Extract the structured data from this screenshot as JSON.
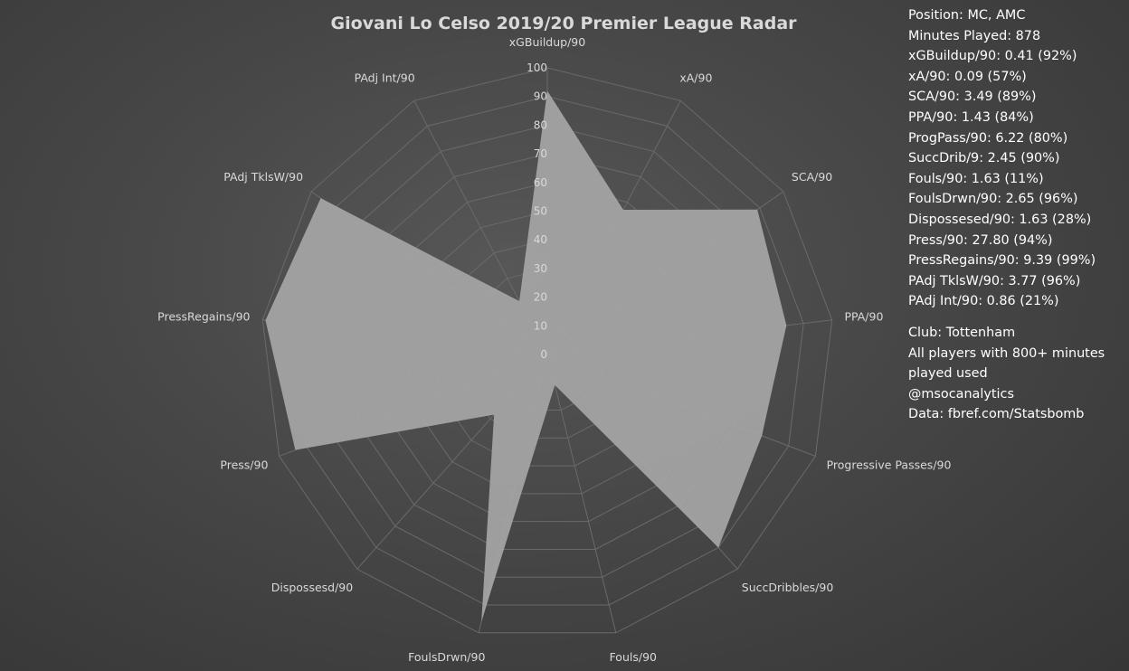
{
  "chart_data": {
    "type": "radar",
    "title": "Giovani Lo Celso 2019/20 Premier League Radar",
    "rlim": [
      0,
      100
    ],
    "r_ticks": [
      "0",
      "10",
      "20",
      "30",
      "40",
      "50",
      "60",
      "70",
      "80",
      "90",
      "100"
    ],
    "categories": [
      "xGBuildup/90",
      "xA/90",
      "SCA/90",
      "PPA/90",
      "Progressive Passes/90",
      "SuccDribbles/90",
      "Fouls/90",
      "FoulsDrwn/90",
      "Dispossesd/90",
      "Press/90",
      "PressRegains/90",
      "PAdj TklsW/90",
      "PAdj Int/90"
    ],
    "series": [
      {
        "values": [
          92,
          57,
          89,
          84,
          80,
          90,
          11,
          96,
          28,
          94,
          99,
          96,
          21
        ]
      }
    ],
    "grid": true,
    "colors": {
      "fill": "#a6a6a6",
      "grid": "#6a6a6a"
    }
  },
  "info": {
    "stats": [
      "Position: MC, AMC",
      "Minutes Played: 878",
      "xGBuildup/90: 0.41 (92%)",
      "xA/90: 0.09 (57%)",
      "SCA/90: 3.49 (89%)",
      "PPA/90: 1.43 (84%)",
      "ProgPass/90: 6.22 (80%)",
      "SuccDrib/9: 2.45 (90%)",
      "Fouls/90: 1.63 (11%)",
      "FoulsDrwn/90: 2.65 (96%)",
      "Dispossesed/90: 1.63 (28%)",
      "Press/90: 27.80 (94%)",
      "PressRegains/90: 9.39 (99%)",
      "PAdj TklsW/90: 3.77 (96%)",
      "PAdj Int/90: 0.86 (21%)"
    ],
    "notes": [
      "Club: Tottenham",
      "All players with 800+ minutes",
      "played used",
      "@msocanalytics",
      "Data: fbref.com/Statsbomb"
    ]
  }
}
